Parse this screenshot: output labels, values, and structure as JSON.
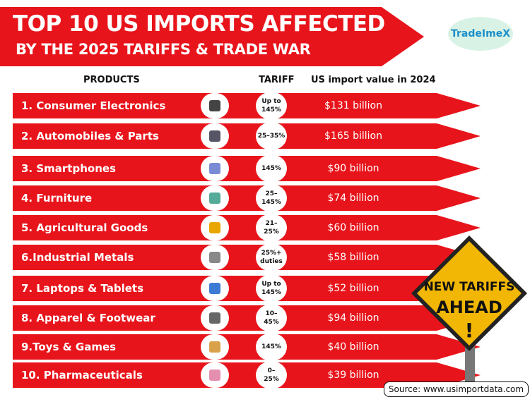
{
  "header": {
    "title_line1": "TOP 10 US IMPORTS AFFECTED",
    "title_line2": "BY THE 2025 TARIFFS & TRADE WAR",
    "logo": "TradeImeX"
  },
  "table": {
    "columns": [
      "PRODUCTS",
      "TARIFF",
      "US import value in 2024"
    ],
    "rows": [
      {
        "product": "1. Consumer Electronics",
        "tariff": [
          "Up to",
          "145%"
        ],
        "value": "$131 billion"
      },
      {
        "product": "2. Automobiles & Parts",
        "tariff": [
          "25–35%"
        ],
        "value": "$165 billion"
      },
      {
        "product": "3. Smartphones",
        "tariff": [
          "145%"
        ],
        "value": "$90 billion"
      },
      {
        "product": "4. Furniture",
        "tariff": [
          "25–",
          "145%"
        ],
        "value": "$74 billion"
      },
      {
        "product": "5. Agricultural Goods",
        "tariff": [
          "21–",
          "25%"
        ],
        "value": "$60 billion"
      },
      {
        "product": "6.Industrial Metals",
        "tariff": [
          "25%+",
          "duties"
        ],
        "value": "$58 billion"
      },
      {
        "product": "7. Laptops & Tablets",
        "tariff": [
          "Up to",
          "145%"
        ],
        "value": "$52 billion"
      },
      {
        "product": "8. Apparel & Footwear",
        "tariff": [
          "10–",
          "45%"
        ],
        "value": "$94 billion"
      },
      {
        "product": "9.Toys & Games",
        "tariff": [
          "145%"
        ],
        "value": "$40 billion"
      },
      {
        "product": "10. Pharmaceuticals",
        "tariff": [
          "0–",
          "25%"
        ],
        "value": "$39 billion"
      }
    ]
  },
  "sign": {
    "line1": "NEW TARIFFS",
    "line2": "AHEAD",
    "line3": "!"
  },
  "source": "Source: www.usimportdata.com"
}
